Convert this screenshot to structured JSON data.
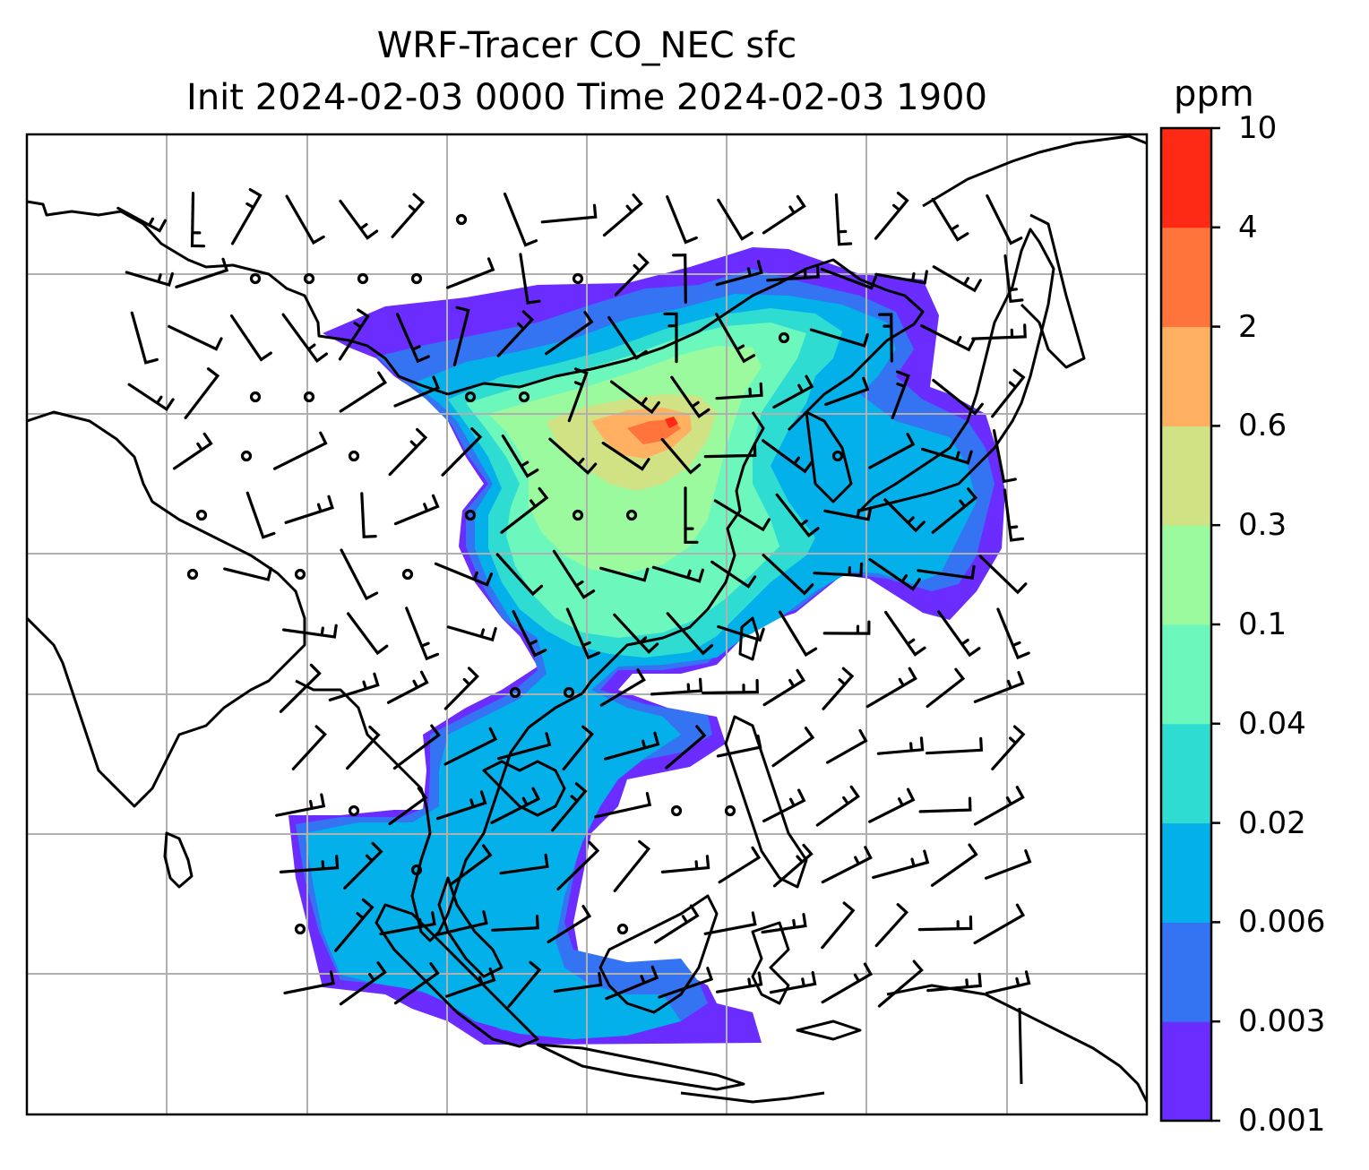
{
  "figure": {
    "title_line1": "WRF-Tracer CO_NEC sfc",
    "title_line2": "Init 2024-02-03 0000 Time 2024-02-03 1900"
  },
  "colorbar": {
    "units": "ppm",
    "levels": [
      "0.001",
      "0.003",
      "0.006",
      "0.02",
      "0.04",
      "0.1",
      "0.3",
      "0.6",
      "2",
      "4",
      "10"
    ],
    "colors": [
      "#6a2cff",
      "#3473f2",
      "#04b0ea",
      "#2fdcd2",
      "#6cf8bd",
      "#9bfa9d",
      "#d1e285",
      "#ffb161",
      "#ff743b",
      "#ff2a15"
    ]
  },
  "map": {
    "frame_color": "#000000",
    "grid_color": "#b0b0b0",
    "coastline_color": "#000000",
    "wind_barb_color": "#000000"
  }
}
